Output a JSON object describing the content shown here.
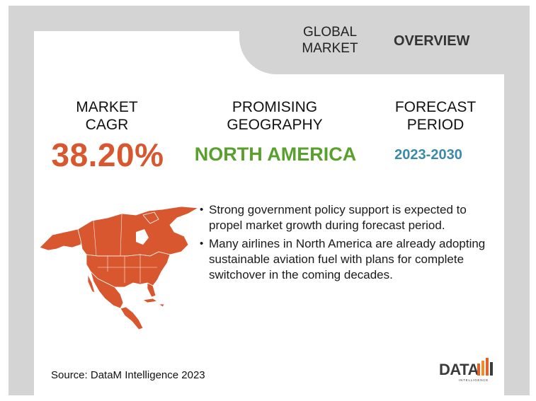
{
  "header": {
    "global_line1": "GLOBAL",
    "global_line2": "MARKET",
    "overview": "OVERVIEW"
  },
  "metrics": {
    "cagr": {
      "label_line1": "MARKET",
      "label_line2": "CAGR",
      "value": "38.20%",
      "color": "#d9572f"
    },
    "geography": {
      "label_line1": "PROMISING",
      "label_line2": "GEOGRAPHY",
      "value": "NORTH AMERICA",
      "color": "#5aa02c"
    },
    "period": {
      "label_line1": "FORECAST",
      "label_line2": "PERIOD",
      "value": "2023-2030",
      "color": "#3b8aa8"
    }
  },
  "map": {
    "icon": "north-america-map",
    "color": "#d9572f"
  },
  "bullets": [
    {
      "symbol": "•",
      "text": "Strong government policy support is expected to propel market growth during forecast period."
    },
    {
      "symbol": "•",
      "text": "Many airlines in North America are already adopting sustainable aviation fuel with plans for complete switchover in the coming decades."
    }
  ],
  "footer": {
    "source": "Source: DataM Intelligence 2023"
  },
  "logo": {
    "text": "DATA",
    "subtext": "INTELLIGENCE",
    "bar_colors": [
      "#e0622b",
      "#f08a2a",
      "#3b3b3b"
    ]
  }
}
